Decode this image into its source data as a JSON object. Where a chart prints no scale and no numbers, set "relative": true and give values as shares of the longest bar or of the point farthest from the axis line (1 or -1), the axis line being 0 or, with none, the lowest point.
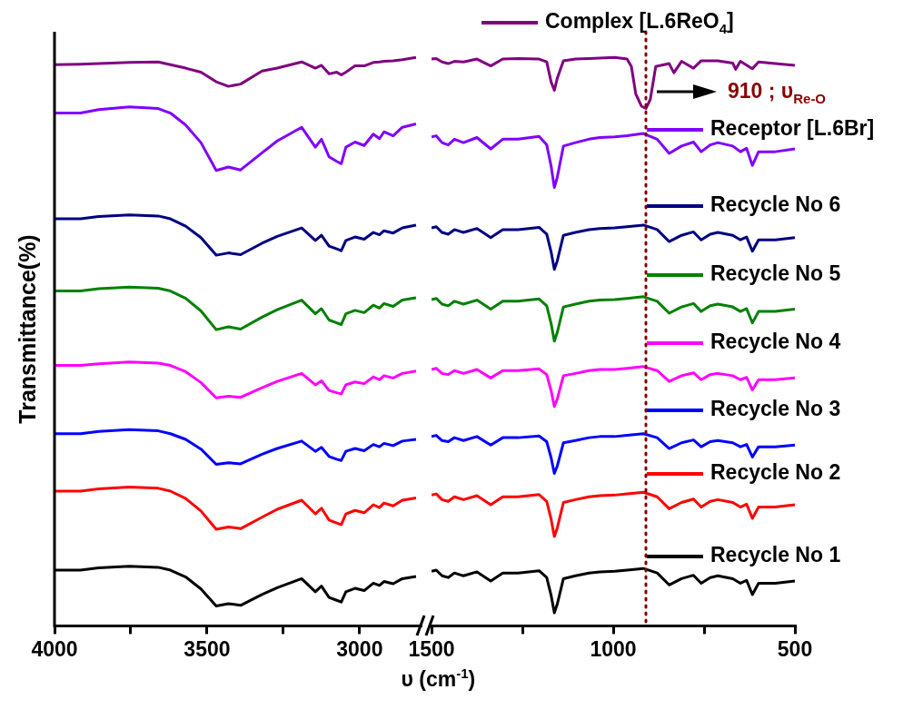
{
  "chart_data": [
    {
      "type": "line",
      "relative": true,
      "ylabel": "Transmittance(%)",
      "xlabel": "υ (cm$^{-1}$)",
      "xlim": [
        4000,
        2800
      ],
      "xticks": [
        4000,
        {
          "value": 3750,
          "label": null
        },
        3500,
        {
          "value": 3250,
          "label": null
        },
        3000
      ],
      "grid": false,
      "x": [
        4000,
        3915,
        3855,
        3755,
        3660,
        3620,
        3570,
        3520,
        3470,
        3430,
        3390,
        3320,
        3270,
        3190,
        3145,
        3125,
        3100,
        3075,
        3060,
        3045,
        3015,
        2985,
        2955,
        2935,
        2920,
        2890,
        2860,
        2815
      ],
      "series": [
        {
          "color": "#800080",
          "values": [
            0.987,
            0.988,
            0.989,
            0.991,
            0.992,
            0.987,
            0.981,
            0.974,
            0.957,
            0.949,
            0.953,
            0.976,
            0.981,
            0.992,
            0.981,
            0.986,
            0.971,
            0.974,
            0.969,
            0.974,
            0.985,
            0.985,
            0.991,
            0.992,
            0.993,
            0.994,
            0.996,
            1
          ]
        },
        {
          "color": "#8000ff",
          "values": [
            0.902,
            0.902,
            0.908,
            0.913,
            0.91,
            0.902,
            0.881,
            0.85,
            0.801,
            0.807,
            0.802,
            0.832,
            0.853,
            0.877,
            0.842,
            0.856,
            0.825,
            0.817,
            0.813,
            0.842,
            0.851,
            0.845,
            0.865,
            0.857,
            0.869,
            0.862,
            0.877,
            0.883
          ]
        },
        {
          "color": "#000080",
          "values": [
            0.716,
            0.716,
            0.72,
            0.723,
            0.721,
            0.716,
            0.703,
            0.683,
            0.652,
            0.656,
            0.653,
            0.673,
            0.685,
            0.7,
            0.678,
            0.687,
            0.668,
            0.663,
            0.66,
            0.678,
            0.684,
            0.68,
            0.692,
            0.688,
            0.695,
            0.691,
            0.7,
            0.705
          ]
        },
        {
          "color": "#008000",
          "values": [
            0.589,
            0.589,
            0.593,
            0.596,
            0.594,
            0.589,
            0.576,
            0.554,
            0.521,
            0.526,
            0.522,
            0.543,
            0.556,
            0.573,
            0.549,
            0.558,
            0.538,
            0.533,
            0.53,
            0.549,
            0.555,
            0.551,
            0.564,
            0.559,
            0.567,
            0.562,
            0.573,
            0.577
          ]
        },
        {
          "color": "#ff00ff",
          "values": [
            0.458,
            0.458,
            0.461,
            0.464,
            0.462,
            0.458,
            0.447,
            0.428,
            0.401,
            0.404,
            0.402,
            0.419,
            0.43,
            0.444,
            0.424,
            0.431,
            0.414,
            0.41,
            0.408,
            0.424,
            0.429,
            0.426,
            0.438,
            0.433,
            0.44,
            0.436,
            0.444,
            0.448
          ]
        },
        {
          "color": "#0000ff",
          "values": [
            0.338,
            0.338,
            0.342,
            0.345,
            0.343,
            0.338,
            0.328,
            0.311,
            0.284,
            0.287,
            0.285,
            0.302,
            0.312,
            0.325,
            0.307,
            0.314,
            0.298,
            0.293,
            0.291,
            0.307,
            0.312,
            0.308,
            0.319,
            0.315,
            0.321,
            0.317,
            0.325,
            0.328
          ]
        },
        {
          "color": "#ff0000",
          "values": [
            0.237,
            0.237,
            0.241,
            0.244,
            0.242,
            0.237,
            0.224,
            0.202,
            0.17,
            0.174,
            0.171,
            0.191,
            0.205,
            0.221,
            0.197,
            0.207,
            0.186,
            0.181,
            0.178,
            0.197,
            0.203,
            0.199,
            0.213,
            0.208,
            0.216,
            0.211,
            0.221,
            0.225
          ]
        },
        {
          "color": "#000000",
          "values": [
            0.098,
            0.098,
            0.102,
            0.105,
            0.103,
            0.098,
            0.086,
            0.065,
            0.035,
            0.039,
            0.036,
            0.055,
            0.067,
            0.083,
            0.06,
            0.07,
            0.05,
            0.045,
            0.042,
            0.06,
            0.066,
            0.062,
            0.075,
            0.071,
            0.078,
            0.074,
            0.083,
            0.087
          ]
        }
      ]
    },
    {
      "type": "line",
      "relative": true,
      "xlim": [
        1500,
        500
      ],
      "xticks": [
        1500,
        {
          "value": 1250,
          "label": null
        },
        1000,
        {
          "value": 750,
          "label": null
        },
        500
      ],
      "grid": false,
      "legend": "right",
      "x": [
        1500,
        1487,
        1471,
        1454,
        1437,
        1412,
        1375,
        1337,
        1304,
        1262,
        1204,
        1183,
        1171,
        1162,
        1154,
        1137,
        1104,
        1067,
        1037,
        996,
        962,
        917,
        879,
        846,
        812,
        779,
        758,
        733,
        712,
        671,
        650,
        633,
        617,
        600,
        554,
        500
      ],
      "series": [
        {
          "name": "Complex [L.6ReO$_{4}$]",
          "color": "#800080",
          "x": [
            1500,
            1487,
            1471,
            1454,
            1437,
            1412,
            1375,
            1337,
            1304,
            1262,
            1204,
            1183,
            1171,
            1162,
            1154,
            1137,
            1104,
            1067,
            996,
            962,
            950,
            938,
            922,
            910,
            898,
            883,
            846,
            833,
            812,
            779,
            758,
            712,
            671,
            663,
            650,
            617,
            600,
            554,
            500
          ],
          "values": [
            0.997,
            0.998,
            0.992,
            0.989,
            0.993,
            0.992,
            0.997,
            0.985,
            0.997,
            0.998,
            0.997,
            0.992,
            0.957,
            0.942,
            0.963,
            0.994,
            0.997,
            0.998,
            1,
            0.997,
            0.984,
            0.936,
            0.914,
            0.91,
            0.926,
            0.984,
            0.989,
            0.973,
            0.993,
            0.981,
            0.994,
            0.994,
            0.99,
            0.979,
            0.993,
            0.98,
            0.992,
            0.989,
            0.986
          ]
        },
        {
          "name": "Receptor [L.6Br]",
          "color": "#8000ff",
          "values": [
            0.86,
            0.862,
            0.85,
            0.846,
            0.856,
            0.85,
            0.859,
            0.839,
            0.856,
            0.856,
            0.861,
            0.846,
            0.809,
            0.771,
            0.789,
            0.844,
            0.85,
            0.856,
            0.859,
            0.86,
            0.862,
            0.866,
            0.856,
            0.831,
            0.844,
            0.851,
            0.834,
            0.846,
            0.85,
            0.844,
            0.834,
            0.84,
            0.81,
            0.834,
            0.834,
            0.839
          ]
        },
        {
          "name": "Recycle No 6",
          "color": "#000080",
          "values": [
            0.7,
            0.702,
            0.692,
            0.689,
            0.697,
            0.692,
            0.699,
            0.683,
            0.697,
            0.697,
            0.701,
            0.689,
            0.658,
            0.627,
            0.642,
            0.687,
            0.692,
            0.697,
            0.699,
            0.7,
            0.702,
            0.705,
            0.697,
            0.676,
            0.687,
            0.693,
            0.679,
            0.689,
            0.692,
            0.687,
            0.679,
            0.684,
            0.659,
            0.679,
            0.679,
            0.683
          ]
        },
        {
          "name": "Recycle No 5",
          "color": "#008000",
          "values": [
            0.574,
            0.576,
            0.566,
            0.563,
            0.571,
            0.566,
            0.573,
            0.557,
            0.571,
            0.571,
            0.575,
            0.563,
            0.532,
            0.501,
            0.516,
            0.561,
            0.566,
            0.571,
            0.573,
            0.574,
            0.576,
            0.579,
            0.571,
            0.55,
            0.561,
            0.567,
            0.553,
            0.563,
            0.566,
            0.561,
            0.553,
            0.558,
            0.533,
            0.553,
            0.553,
            0.557
          ]
        },
        {
          "name": "Recycle No 4",
          "color": "#ff00ff",
          "values": [
            0.451,
            0.453,
            0.444,
            0.442,
            0.449,
            0.444,
            0.451,
            0.436,
            0.449,
            0.449,
            0.452,
            0.442,
            0.414,
            0.386,
            0.399,
            0.44,
            0.444,
            0.449,
            0.451,
            0.451,
            0.453,
            0.456,
            0.449,
            0.43,
            0.44,
            0.445,
            0.433,
            0.442,
            0.444,
            0.44,
            0.433,
            0.437,
            0.415,
            0.433,
            0.433,
            0.436
          ]
        },
        {
          "name": "Recycle No 3",
          "color": "#0000ff",
          "values": [
            0.333,
            0.335,
            0.326,
            0.324,
            0.331,
            0.326,
            0.333,
            0.318,
            0.331,
            0.331,
            0.334,
            0.324,
            0.296,
            0.268,
            0.281,
            0.322,
            0.326,
            0.331,
            0.333,
            0.333,
            0.335,
            0.338,
            0.331,
            0.312,
            0.322,
            0.327,
            0.315,
            0.324,
            0.326,
            0.322,
            0.315,
            0.319,
            0.297,
            0.315,
            0.315,
            0.318
          ]
        },
        {
          "name": "Recycle No 2",
          "color": "#ff0000",
          "values": [
            0.23,
            0.232,
            0.222,
            0.219,
            0.227,
            0.222,
            0.229,
            0.213,
            0.227,
            0.227,
            0.231,
            0.219,
            0.188,
            0.157,
            0.172,
            0.217,
            0.222,
            0.227,
            0.229,
            0.23,
            0.232,
            0.235,
            0.227,
            0.206,
            0.217,
            0.223,
            0.209,
            0.219,
            0.222,
            0.217,
            0.209,
            0.214,
            0.189,
            0.209,
            0.209,
            0.213
          ]
        },
        {
          "name": "Recycle No 1",
          "color": "#000000",
          "values": [
            0.096,
            0.098,
            0.088,
            0.085,
            0.093,
            0.088,
            0.095,
            0.079,
            0.093,
            0.093,
            0.097,
            0.085,
            0.054,
            0.023,
            0.038,
            0.083,
            0.088,
            0.093,
            0.095,
            0.096,
            0.098,
            0.101,
            0.093,
            0.072,
            0.083,
            0.089,
            0.075,
            0.085,
            0.088,
            0.083,
            0.075,
            0.08,
            0.055,
            0.075,
            0.075,
            0.079
          ]
        }
      ],
      "ref_lines": [
        {
          "axis": "x",
          "value": 910,
          "color": "#800000",
          "line_style": "dotted",
          "label": "910 ; υ$_{Re-O}$"
        }
      ]
    }
  ]
}
